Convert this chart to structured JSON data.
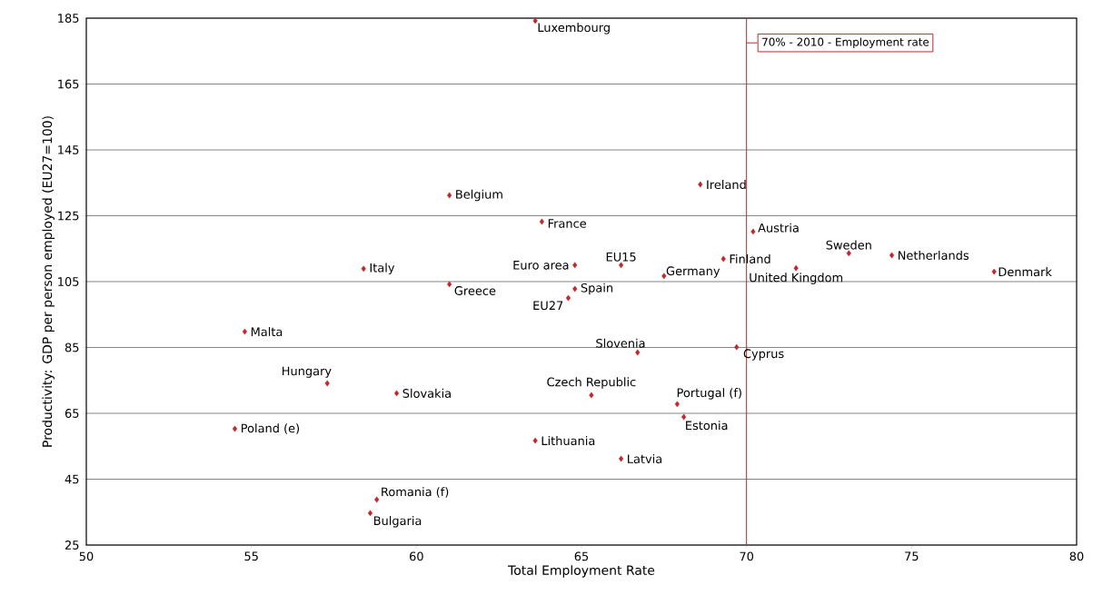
{
  "chart_data": {
    "type": "scatter",
    "xlabel": "Total Employment Rate",
    "ylabel": "Productivity: GDP per person employed (EU27=100)",
    "x": [
      63.6,
      68.6,
      61.0,
      63.8,
      70.2,
      73.1,
      74.4,
      69.3,
      77.5,
      71.5,
      66.2,
      64.8,
      67.5,
      58.4,
      61.0,
      64.8,
      64.6,
      54.8,
      66.7,
      69.7,
      57.3,
      59.4,
      65.3,
      67.9,
      68.1,
      54.5,
      63.6,
      66.2,
      58.8,
      58.6
    ],
    "values": [
      184.2,
      134.5,
      131.2,
      123.2,
      120.2,
      113.6,
      113.0,
      111.9,
      108.0,
      109.1,
      110.0,
      110.0,
      106.7,
      108.9,
      104.2,
      102.8,
      100.0,
      89.8,
      83.5,
      85.1,
      74.1,
      71.1,
      70.5,
      67.8,
      63.9,
      60.3,
      56.7,
      51.2,
      38.8,
      34.7
    ],
    "color": "#c0282d",
    "marker": "diamond",
    "xlim": [
      50,
      80
    ],
    "xticks": [
      50,
      55,
      60,
      65,
      70,
      75,
      80
    ],
    "ylim": [
      25,
      185
    ],
    "yticks": [
      25,
      45,
      65,
      85,
      105,
      125,
      145,
      165,
      185
    ],
    "grid": "y",
    "ref_lines": [
      {
        "axis": "x",
        "value": 70,
        "label": "70% - 2010  - Employment rate",
        "color": "#c0282d"
      }
    ],
    "annotations": [
      {
        "text": "Luxembourg",
        "x": 63.6,
        "y": 184.2
      },
      {
        "text": "Ireland",
        "x": 68.6,
        "y": 134.5
      },
      {
        "text": "Belgium",
        "x": 61.0,
        "y": 131.2
      },
      {
        "text": "France",
        "x": 63.8,
        "y": 123.2
      },
      {
        "text": "Austria",
        "x": 70.2,
        "y": 120.2
      },
      {
        "text": "Sweden",
        "x": 73.1,
        "y": 113.6
      },
      {
        "text": "Netherlands",
        "x": 74.4,
        "y": 113.0
      },
      {
        "text": "Finland",
        "x": 69.3,
        "y": 111.9
      },
      {
        "text": "Denmark",
        "x": 77.5,
        "y": 108.0
      },
      {
        "text": "United Kingdom",
        "x": 71.5,
        "y": 109.1
      },
      {
        "text": "EU15",
        "x": 66.2,
        "y": 110.0
      },
      {
        "text": "Euro area",
        "x": 64.8,
        "y": 110.0
      },
      {
        "text": "Germany",
        "x": 67.5,
        "y": 106.7
      },
      {
        "text": "Italy",
        "x": 58.4,
        "y": 108.9
      },
      {
        "text": "Greece",
        "x": 61.0,
        "y": 104.2
      },
      {
        "text": "Spain",
        "x": 64.8,
        "y": 102.8
      },
      {
        "text": "EU27",
        "x": 64.6,
        "y": 100.0
      },
      {
        "text": "Malta",
        "x": 54.8,
        "y": 89.8
      },
      {
        "text": "Slovenia",
        "x": 66.7,
        "y": 83.5
      },
      {
        "text": "Cyprus",
        "x": 69.7,
        "y": 85.1
      },
      {
        "text": "Hungary",
        "x": 57.3,
        "y": 74.1
      },
      {
        "text": "Slovakia",
        "x": 59.4,
        "y": 71.1
      },
      {
        "text": "Czech Republic",
        "x": 65.3,
        "y": 70.5
      },
      {
        "text": "Portugal (f)",
        "x": 67.9,
        "y": 67.8
      },
      {
        "text": "Estonia",
        "x": 68.1,
        "y": 63.9
      },
      {
        "text": "Poland (e)",
        "x": 54.5,
        "y": 60.3
      },
      {
        "text": "Lithuania",
        "x": 63.6,
        "y": 56.7
      },
      {
        "text": "Latvia",
        "x": 66.2,
        "y": 51.2
      },
      {
        "text": "Romania (f)",
        "x": 58.8,
        "y": 38.8
      },
      {
        "text": "Bulgaria",
        "x": 58.6,
        "y": 34.7
      }
    ]
  }
}
